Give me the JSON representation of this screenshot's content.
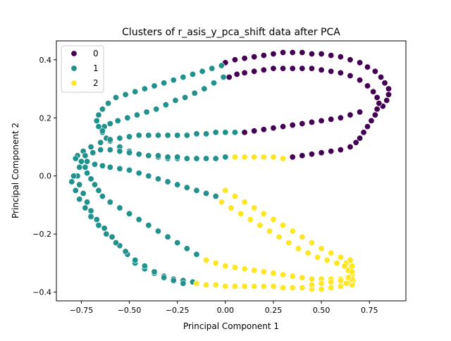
{
  "chart_data": {
    "type": "scatter",
    "title": "Clusters of r_asis_y_pca_shift data after PCA",
    "xlabel": "Principal Component 1",
    "ylabel": "Principal Component 2",
    "xlim": [
      -0.88,
      0.94
    ],
    "ylim": [
      -0.43,
      0.465
    ],
    "xticks": [
      -0.75,
      -0.5,
      -0.25,
      0.0,
      0.25,
      0.5,
      0.75
    ],
    "xtick_labels": [
      "−0.75",
      "−0.50",
      "−0.25",
      "0.00",
      "0.25",
      "0.50",
      "0.75"
    ],
    "yticks": [
      -0.4,
      -0.2,
      0.0,
      0.2,
      0.4
    ],
    "ytick_labels": [
      "−0.4",
      "−0.2",
      "0.0",
      "0.2",
      "0.4"
    ],
    "grid": false,
    "legend_position": "top-left",
    "series": [
      {
        "name": "0",
        "color": "#440154",
        "points": [
          [
            0.0,
            0.39
          ],
          [
            0.05,
            0.4
          ],
          [
            0.1,
            0.405
          ],
          [
            0.15,
            0.41
          ],
          [
            0.2,
            0.415
          ],
          [
            0.25,
            0.42
          ],
          [
            0.3,
            0.425
          ],
          [
            0.35,
            0.425
          ],
          [
            0.4,
            0.425
          ],
          [
            0.45,
            0.42
          ],
          [
            0.5,
            0.42
          ],
          [
            0.55,
            0.415
          ],
          [
            0.6,
            0.41
          ],
          [
            0.65,
            0.4
          ],
          [
            0.7,
            0.39
          ],
          [
            0.74,
            0.375
          ],
          [
            0.78,
            0.36
          ],
          [
            0.81,
            0.34
          ],
          [
            0.83,
            0.32
          ],
          [
            0.85,
            0.3
          ],
          [
            0.85,
            0.28
          ],
          [
            0.84,
            0.26
          ],
          [
            0.82,
            0.24
          ],
          [
            0.02,
            0.34
          ],
          [
            0.06,
            0.35
          ],
          [
            0.1,
            0.355
          ],
          [
            0.15,
            0.36
          ],
          [
            0.2,
            0.365
          ],
          [
            0.25,
            0.37
          ],
          [
            0.3,
            0.37
          ],
          [
            0.35,
            0.37
          ],
          [
            0.4,
            0.37
          ],
          [
            0.45,
            0.37
          ],
          [
            0.5,
            0.365
          ],
          [
            0.55,
            0.36
          ],
          [
            0.6,
            0.355
          ],
          [
            0.65,
            0.345
          ],
          [
            0.7,
            0.33
          ],
          [
            0.74,
            0.31
          ],
          [
            0.77,
            0.29
          ],
          [
            0.79,
            0.27
          ],
          [
            0.8,
            0.25
          ],
          [
            0.79,
            0.23
          ],
          [
            0.78,
            0.21
          ],
          [
            0.76,
            0.19
          ],
          [
            0.74,
            0.17
          ],
          [
            0.72,
            0.15
          ],
          [
            0.7,
            0.13
          ],
          [
            0.68,
            0.115
          ],
          [
            0.65,
            0.1
          ],
          [
            0.6,
            0.09
          ],
          [
            0.55,
            0.085
          ],
          [
            0.5,
            0.08
          ],
          [
            0.45,
            0.075
          ],
          [
            0.4,
            0.07
          ],
          [
            0.35,
            0.065
          ],
          [
            0.1,
            0.15
          ],
          [
            0.15,
            0.155
          ],
          [
            0.2,
            0.16
          ],
          [
            0.25,
            0.165
          ],
          [
            0.3,
            0.17
          ],
          [
            0.35,
            0.175
          ],
          [
            0.4,
            0.18
          ],
          [
            0.45,
            0.185
          ],
          [
            0.5,
            0.19
          ],
          [
            0.55,
            0.195
          ],
          [
            0.6,
            0.2
          ],
          [
            0.65,
            0.21
          ],
          [
            0.7,
            0.22
          ]
        ]
      },
      {
        "name": "1",
        "color": "#21918c",
        "points": [
          [
            -0.02,
            0.38
          ],
          [
            -0.07,
            0.37
          ],
          [
            -0.12,
            0.36
          ],
          [
            -0.17,
            0.35
          ],
          [
            -0.22,
            0.34
          ],
          [
            -0.27,
            0.33
          ],
          [
            -0.32,
            0.32
          ],
          [
            -0.37,
            0.31
          ],
          [
            -0.42,
            0.3
          ],
          [
            -0.47,
            0.29
          ],
          [
            -0.52,
            0.28
          ],
          [
            -0.57,
            0.27
          ],
          [
            -0.61,
            0.25
          ],
          [
            -0.64,
            0.23
          ],
          [
            -0.66,
            0.21
          ],
          [
            -0.67,
            0.19
          ],
          [
            -0.66,
            0.17
          ],
          [
            -0.64,
            0.15
          ],
          [
            -0.62,
            0.13
          ],
          [
            -0.6,
            0.12
          ],
          [
            -0.55,
            0.1
          ],
          [
            -0.5,
            0.085
          ],
          [
            -0.45,
            0.075
          ],
          [
            -0.4,
            0.07
          ],
          [
            -0.35,
            0.065
          ],
          [
            -0.3,
            0.06
          ],
          [
            -0.25,
            0.06
          ],
          [
            -0.2,
            0.06
          ],
          [
            -0.15,
            0.06
          ],
          [
            -0.1,
            0.06
          ],
          [
            -0.05,
            0.06
          ],
          [
            0.0,
            0.065
          ],
          [
            -0.01,
            0.34
          ],
          [
            -0.06,
            0.32
          ],
          [
            -0.11,
            0.3
          ],
          [
            -0.16,
            0.285
          ],
          [
            -0.21,
            0.27
          ],
          [
            -0.26,
            0.26
          ],
          [
            -0.31,
            0.245
          ],
          [
            -0.36,
            0.23
          ],
          [
            -0.41,
            0.22
          ],
          [
            -0.46,
            0.21
          ],
          [
            -0.51,
            0.2
          ],
          [
            -0.56,
            0.19
          ],
          [
            -0.6,
            0.18
          ],
          [
            -0.63,
            0.17
          ],
          [
            -0.64,
            0.155
          ],
          [
            0.05,
            0.15
          ],
          [
            0.0,
            0.15
          ],
          [
            -0.05,
            0.15
          ],
          [
            -0.1,
            0.145
          ],
          [
            -0.15,
            0.145
          ],
          [
            -0.2,
            0.14
          ],
          [
            -0.25,
            0.14
          ],
          [
            -0.3,
            0.14
          ],
          [
            -0.35,
            0.14
          ],
          [
            -0.4,
            0.14
          ],
          [
            -0.45,
            0.14
          ],
          [
            -0.5,
            0.135
          ],
          [
            -0.55,
            0.13
          ],
          [
            -0.6,
            0.125
          ],
          [
            -0.65,
            0.115
          ],
          [
            -0.7,
            0.1
          ],
          [
            -0.74,
            0.085
          ],
          [
            -0.77,
            0.07
          ],
          [
            -0.78,
            0.06
          ],
          [
            -0.75,
            0.05
          ],
          [
            -0.73,
            0.03
          ],
          [
            -0.72,
            0.01
          ],
          [
            -0.7,
            -0.01
          ],
          [
            -0.68,
            -0.03
          ],
          [
            -0.66,
            -0.05
          ],
          [
            -0.64,
            -0.07
          ],
          [
            -0.6,
            -0.09
          ],
          [
            -0.55,
            -0.11
          ],
          [
            -0.5,
            -0.13
          ],
          [
            -0.45,
            -0.15
          ],
          [
            -0.4,
            -0.17
          ],
          [
            -0.35,
            -0.19
          ],
          [
            -0.3,
            -0.21
          ],
          [
            -0.25,
            -0.23
          ],
          [
            -0.2,
            -0.25
          ],
          [
            -0.15,
            -0.27
          ],
          [
            -0.1,
            -0.29
          ],
          [
            -0.76,
            0.03
          ],
          [
            -0.77,
            0.0
          ],
          [
            -0.76,
            -0.03
          ],
          [
            -0.74,
            -0.06
          ],
          [
            -0.72,
            -0.09
          ],
          [
            -0.7,
            -0.12
          ],
          [
            -0.67,
            -0.15
          ],
          [
            -0.63,
            -0.18
          ],
          [
            -0.59,
            -0.21
          ],
          [
            -0.55,
            -0.24
          ],
          [
            -0.51,
            -0.27
          ],
          [
            -0.47,
            -0.3
          ],
          [
            -0.42,
            -0.32
          ],
          [
            -0.37,
            -0.335
          ],
          [
            -0.32,
            -0.345
          ],
          [
            -0.27,
            -0.355
          ],
          [
            -0.22,
            -0.36
          ],
          [
            -0.17,
            -0.365
          ],
          [
            -0.79,
            0.0
          ],
          [
            -0.8,
            -0.02
          ],
          [
            -0.78,
            -0.05
          ],
          [
            -0.76,
            -0.08
          ],
          [
            -0.73,
            -0.11
          ],
          [
            -0.7,
            -0.14
          ],
          [
            -0.66,
            -0.17
          ],
          [
            -0.62,
            -0.2
          ],
          [
            -0.57,
            -0.23
          ],
          [
            -0.52,
            -0.26
          ],
          [
            -0.47,
            -0.29
          ],
          [
            -0.42,
            -0.31
          ],
          [
            -0.37,
            -0.33
          ],
          [
            -0.32,
            -0.35
          ],
          [
            -0.27,
            -0.36
          ],
          [
            -0.22,
            -0.37
          ],
          [
            -0.72,
            0.05
          ],
          [
            -0.68,
            0.04
          ],
          [
            -0.64,
            0.035
          ],
          [
            -0.6,
            0.03
          ],
          [
            -0.55,
            0.025
          ],
          [
            -0.5,
            0.02
          ],
          [
            -0.45,
            0.01
          ],
          [
            -0.4,
            0.0
          ],
          [
            -0.35,
            -0.01
          ],
          [
            -0.3,
            -0.02
          ],
          [
            -0.25,
            -0.03
          ],
          [
            -0.2,
            -0.04
          ],
          [
            -0.15,
            -0.05
          ],
          [
            -0.1,
            -0.06
          ],
          [
            -0.05,
            -0.07
          ],
          [
            -0.73,
            0.07
          ],
          [
            -0.69,
            0.08
          ],
          [
            -0.65,
            0.09
          ],
          [
            -0.6,
            0.09
          ],
          [
            -0.55,
            0.085
          ],
          [
            -0.5,
            0.08
          ],
          [
            -0.45,
            0.075
          ],
          [
            -0.4,
            0.07
          ],
          [
            -0.35,
            0.07
          ],
          [
            -0.3,
            0.065
          ],
          [
            -0.25,
            0.065
          ],
          [
            -0.2,
            0.06
          ],
          [
            -0.15,
            0.06
          ],
          [
            -0.1,
            0.06
          ],
          [
            -0.05,
            0.06
          ]
        ]
      },
      {
        "name": "2",
        "color": "#fde725",
        "points": [
          [
            0.05,
            0.065
          ],
          [
            0.1,
            0.065
          ],
          [
            0.15,
            0.065
          ],
          [
            0.2,
            0.065
          ],
          [
            0.25,
            0.065
          ],
          [
            0.3,
            0.06
          ],
          [
            0.0,
            -0.05
          ],
          [
            0.05,
            -0.07
          ],
          [
            0.1,
            -0.09
          ],
          [
            0.15,
            -0.11
          ],
          [
            0.2,
            -0.13
          ],
          [
            0.25,
            -0.15
          ],
          [
            0.3,
            -0.17
          ],
          [
            0.35,
            -0.19
          ],
          [
            0.4,
            -0.21
          ],
          [
            0.45,
            -0.23
          ],
          [
            0.5,
            -0.25
          ],
          [
            0.55,
            -0.265
          ],
          [
            0.6,
            -0.28
          ],
          [
            0.63,
            -0.3
          ],
          [
            0.65,
            -0.32
          ],
          [
            0.66,
            -0.34
          ],
          [
            0.665,
            -0.36
          ],
          [
            0.66,
            -0.375
          ],
          [
            -0.02,
            -0.09
          ],
          [
            0.03,
            -0.11
          ],
          [
            0.08,
            -0.13
          ],
          [
            0.13,
            -0.15
          ],
          [
            0.18,
            -0.17
          ],
          [
            0.23,
            -0.19
          ],
          [
            0.28,
            -0.21
          ],
          [
            0.33,
            -0.23
          ],
          [
            0.38,
            -0.25
          ],
          [
            0.43,
            -0.265
          ],
          [
            0.48,
            -0.28
          ],
          [
            0.53,
            -0.29
          ],
          [
            0.58,
            -0.3
          ],
          [
            0.62,
            -0.31
          ],
          [
            0.64,
            -0.325
          ],
          [
            -0.1,
            -0.29
          ],
          [
            -0.05,
            -0.3
          ],
          [
            0.0,
            -0.31
          ],
          [
            0.05,
            -0.315
          ],
          [
            0.1,
            -0.32
          ],
          [
            0.15,
            -0.325
          ],
          [
            0.2,
            -0.33
          ],
          [
            0.25,
            -0.335
          ],
          [
            0.3,
            -0.34
          ],
          [
            0.35,
            -0.345
          ],
          [
            0.4,
            -0.35
          ],
          [
            0.45,
            -0.355
          ],
          [
            0.5,
            -0.355
          ],
          [
            0.55,
            -0.355
          ],
          [
            0.6,
            -0.355
          ],
          [
            0.65,
            -0.36
          ],
          [
            -0.15,
            -0.37
          ],
          [
            -0.1,
            -0.375
          ],
          [
            -0.05,
            -0.375
          ],
          [
            0.0,
            -0.38
          ],
          [
            0.05,
            -0.38
          ],
          [
            0.1,
            -0.38
          ],
          [
            0.15,
            -0.38
          ],
          [
            0.2,
            -0.38
          ],
          [
            0.25,
            -0.38
          ],
          [
            0.3,
            -0.385
          ],
          [
            0.35,
            -0.385
          ],
          [
            0.4,
            -0.385
          ],
          [
            0.45,
            -0.39
          ],
          [
            0.5,
            -0.39
          ],
          [
            0.55,
            -0.385
          ],
          [
            0.6,
            -0.38
          ],
          [
            0.63,
            -0.37
          ],
          [
            0.66,
            -0.355
          ],
          [
            0.45,
            -0.375
          ],
          [
            0.5,
            -0.37
          ],
          [
            0.55,
            -0.365
          ],
          [
            0.6,
            -0.36
          ],
          [
            0.64,
            -0.35
          ],
          [
            0.66,
            -0.33
          ],
          [
            0.66,
            -0.31
          ],
          [
            0.65,
            -0.29
          ]
        ]
      }
    ]
  }
}
